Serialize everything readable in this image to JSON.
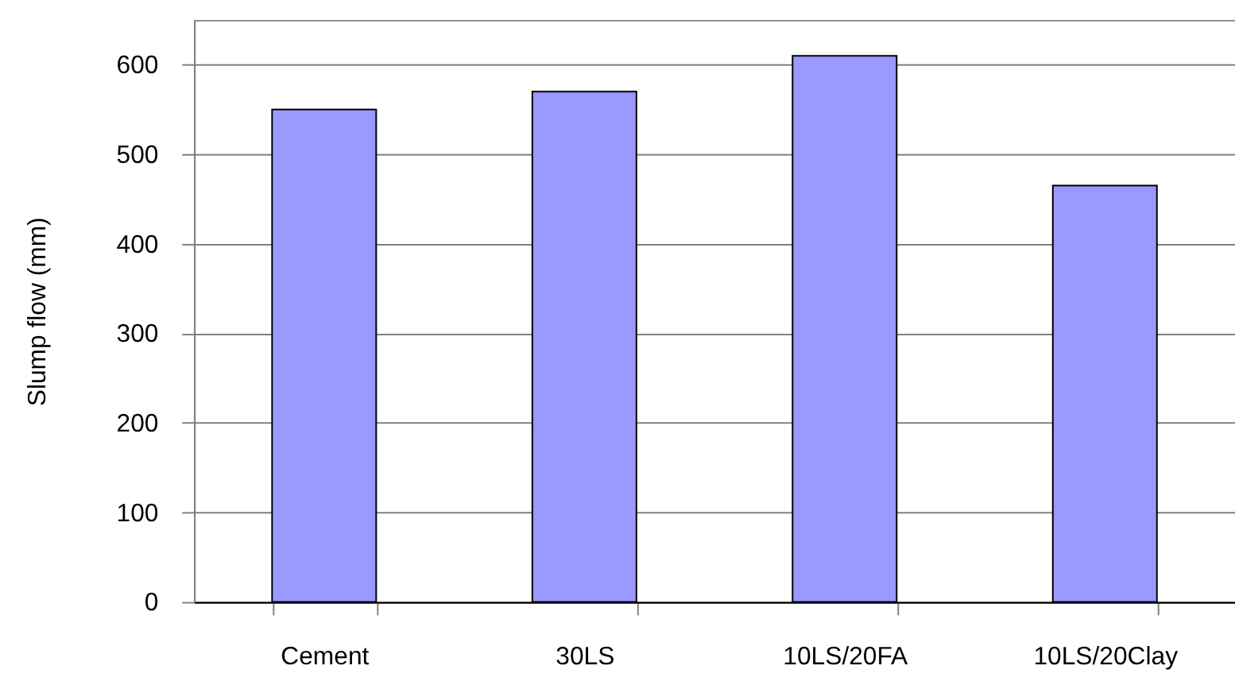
{
  "chart_data": {
    "type": "bar",
    "ylabel": "Slump flow (mm)",
    "categories": [
      "Cement",
      "30LS",
      "10LS/20FA",
      "10LS/20Clay"
    ],
    "values": [
      550,
      570,
      610,
      465
    ],
    "color": "#9999ff",
    "ylim": [
      0,
      650
    ],
    "yticks": [
      0,
      100,
      200,
      300,
      400,
      500,
      600
    ],
    "grid": "y"
  }
}
